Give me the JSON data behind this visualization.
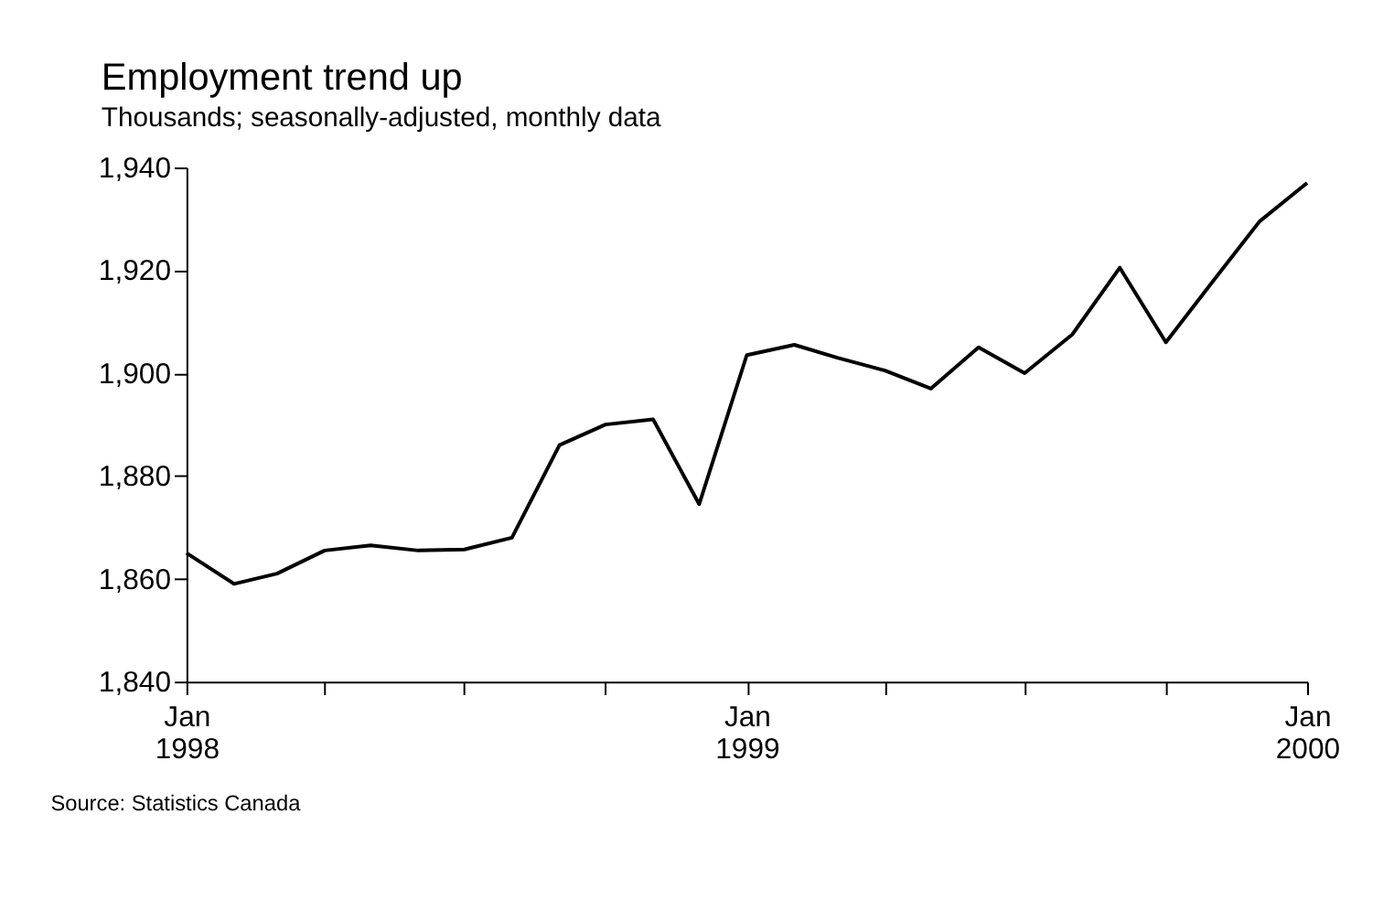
{
  "chart_data": {
    "type": "line",
    "title": "Employment trend up",
    "subtitle": "Thousands; seasonally-adjusted, monthly data",
    "x": [
      "1998-01",
      "1998-02",
      "1998-03",
      "1998-04",
      "1998-05",
      "1998-06",
      "1998-07",
      "1998-08",
      "1998-09",
      "1998-10",
      "1998-11",
      "1998-12",
      "1999-01",
      "1999-02",
      "1999-03",
      "1999-04",
      "1999-05",
      "1999-06",
      "1999-07",
      "1999-08",
      "1999-09",
      "1999-10",
      "1999-11",
      "1999-12",
      "2000-01"
    ],
    "series": [
      {
        "color": "#000000",
        "values": [
          1865,
          1859,
          1861,
          1865.5,
          1866.5,
          1865.5,
          1865.7,
          1868,
          1886,
          1890,
          1891,
          1874.5,
          1903.5,
          1905.5,
          1903,
          1900.5,
          1897,
          1905,
          1900,
          1907.5,
          1920.5,
          1906,
          1918,
          1929.5,
          1937
        ]
      }
    ],
    "ylim": [
      1840,
      1940
    ],
    "yticks": [
      {
        "value": 1840,
        "label": "1,840"
      },
      {
        "value": 1860,
        "label": "1,860"
      },
      {
        "value": 1880,
        "label": "1,880"
      },
      {
        "value": 1900,
        "label": "1,900"
      },
      {
        "value": 1920,
        "label": "1,920"
      },
      {
        "value": 1940,
        "label": "1,940"
      }
    ],
    "xlim": [
      "1998-01",
      "2000-01"
    ],
    "xticks": [
      {
        "value": "1998-01",
        "label": "Jan\n1998"
      },
      {
        "value": "1998-04",
        "label": null
      },
      {
        "value": "1998-07",
        "label": null
      },
      {
        "value": "1998-10",
        "label": null
      },
      {
        "value": "1999-01",
        "label": "Jan\n1999"
      },
      {
        "value": "1999-04",
        "label": null
      },
      {
        "value": "1999-07",
        "label": null
      },
      {
        "value": "1999-10",
        "label": null
      },
      {
        "value": "2000-01",
        "label": "Jan\n2000"
      }
    ],
    "annotations": [
      "Source: Statistics Canada"
    ],
    "grid": false,
    "legend": false,
    "marker": "none",
    "line_style": "solid"
  }
}
